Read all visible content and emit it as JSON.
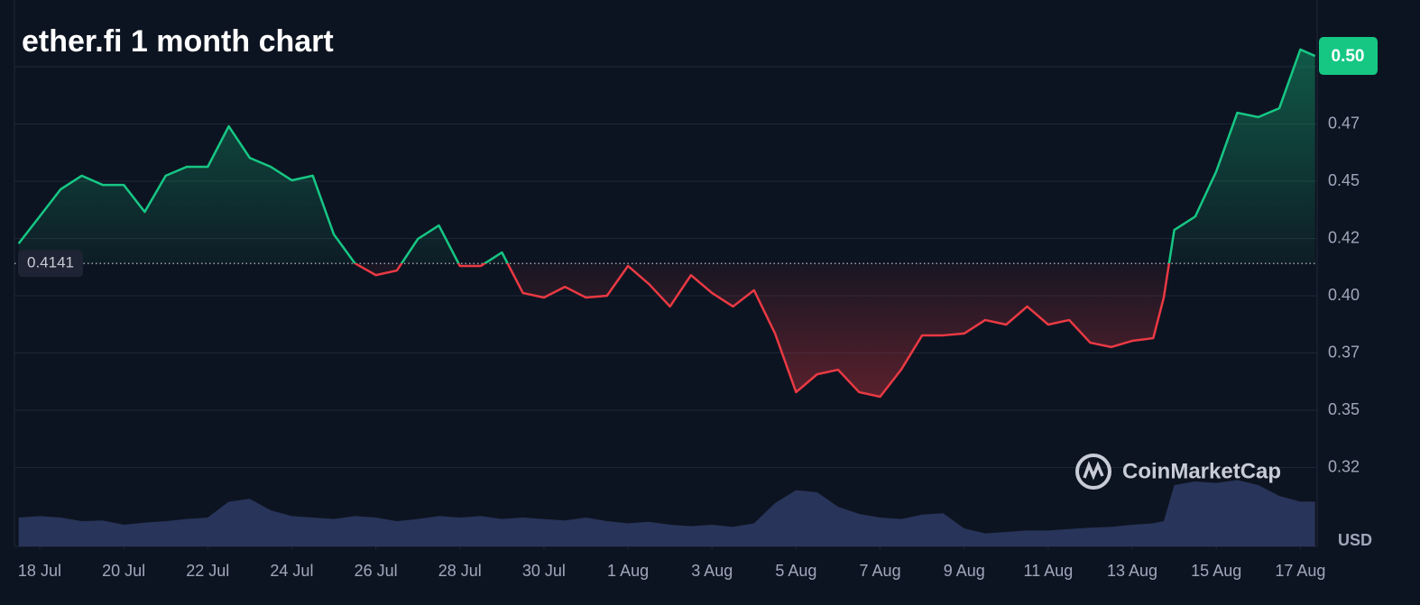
{
  "chart_data": {
    "type": "line",
    "title": "ether.fi 1 month chart",
    "watermark": "CoinMarketCap",
    "y_unit": "USD",
    "baseline": 0.4141,
    "current_price": {
      "value": 0.5047,
      "label": "0.50"
    },
    "color_up": "#16c784",
    "color_down": "#ea3943",
    "grid": true,
    "x": [
      0.5,
      1,
      1.5,
      2,
      2.5,
      3,
      3.5,
      4,
      4.5,
      5,
      5.5,
      6,
      6.5,
      7,
      7.5,
      8,
      8.5,
      9,
      9.5,
      10,
      10.5,
      11,
      11.5,
      12,
      12.5,
      13,
      13.5,
      14,
      14.5,
      15,
      15.5,
      16,
      16.5,
      17,
      17.5,
      18,
      18.5,
      19,
      19.5,
      20,
      20.5,
      21,
      21.5,
      22,
      22.5,
      23,
      23.5,
      24,
      24.5,
      25,
      25.5,
      26,
      26.5,
      27,
      27.5,
      27.75,
      28,
      28.5,
      29,
      29.5,
      30,
      30.5,
      31,
      31.35
    ],
    "series": [
      {
        "values": [
          0.4228,
          0.4346,
          0.4465,
          0.4524,
          0.4484,
          0.4484,
          0.4366,
          0.4524,
          0.4563,
          0.4563,
          0.474,
          0.4602,
          0.4563,
          0.4504,
          0.4524,
          0.4268,
          0.4142,
          0.409,
          0.411,
          0.4248,
          0.4307,
          0.413,
          0.413,
          0.4189,
          0.4012,
          0.3992,
          0.4039,
          0.3992,
          0.4,
          0.413,
          0.4051,
          0.3953,
          0.409,
          0.4012,
          0.3953,
          0.4024,
          0.3835,
          0.3579,
          0.3657,
          0.3677,
          0.3579,
          0.3559,
          0.3677,
          0.3827,
          0.3827,
          0.3835,
          0.3894,
          0.3874,
          0.3953,
          0.3874,
          0.3894,
          0.3795,
          0.3776,
          0.3803,
          0.3815,
          0.3992,
          0.4287,
          0.4346,
          0.4543,
          0.4799,
          0.478,
          0.4819,
          0.5075,
          0.5047
        ]
      }
    ],
    "volume": {
      "color": "#2e3a63",
      "ylim": [
        0,
        100
      ],
      "values": [
        40,
        42,
        40,
        35,
        36,
        30,
        33,
        35,
        38,
        40,
        62,
        66,
        50,
        42,
        40,
        38,
        42,
        40,
        35,
        38,
        42,
        40,
        42,
        38,
        40,
        38,
        36,
        40,
        35,
        32,
        34,
        30,
        28,
        30,
        27,
        32,
        60,
        78,
        75,
        55,
        45,
        40,
        38,
        44,
        46,
        25,
        18,
        20,
        22,
        22,
        24,
        26,
        27,
        30,
        32,
        35,
        85,
        90,
        88,
        92,
        85,
        70,
        62,
        62
      ]
    },
    "xlim": [
      0.4,
      31.4
    ],
    "xticks": [
      {
        "value": 1,
        "label": "18 Jul"
      },
      {
        "value": 3,
        "label": "20 Jul"
      },
      {
        "value": 5,
        "label": "22 Jul"
      },
      {
        "value": 7,
        "label": "24 Jul"
      },
      {
        "value": 9,
        "label": "26 Jul"
      },
      {
        "value": 11,
        "label": "28 Jul"
      },
      {
        "value": 13,
        "label": "30 Jul"
      },
      {
        "value": 15,
        "label": "1 Aug"
      },
      {
        "value": 17,
        "label": "3 Aug"
      },
      {
        "value": 19,
        "label": "5 Aug"
      },
      {
        "value": 21,
        "label": "7 Aug"
      },
      {
        "value": 23,
        "label": "9 Aug"
      },
      {
        "value": 25,
        "label": "11 Aug"
      },
      {
        "value": 27,
        "label": "13 Aug"
      },
      {
        "value": 29,
        "label": "15 Aug"
      },
      {
        "value": 31,
        "label": "17 Aug"
      }
    ],
    "ylim": [
      0.3,
      0.525
    ],
    "yticks": [
      {
        "value": 0.325,
        "label": "0.32"
      },
      0.35,
      {
        "value": 0.375,
        "label": "0.37"
      },
      {
        "value": 0.4,
        "label": "0.40"
      },
      {
        "value": 0.425,
        "label": "0.42"
      },
      0.45,
      {
        "value": 0.475,
        "label": "0.47"
      },
      {
        "value": 0.5,
        "label": "0.50"
      }
    ]
  }
}
